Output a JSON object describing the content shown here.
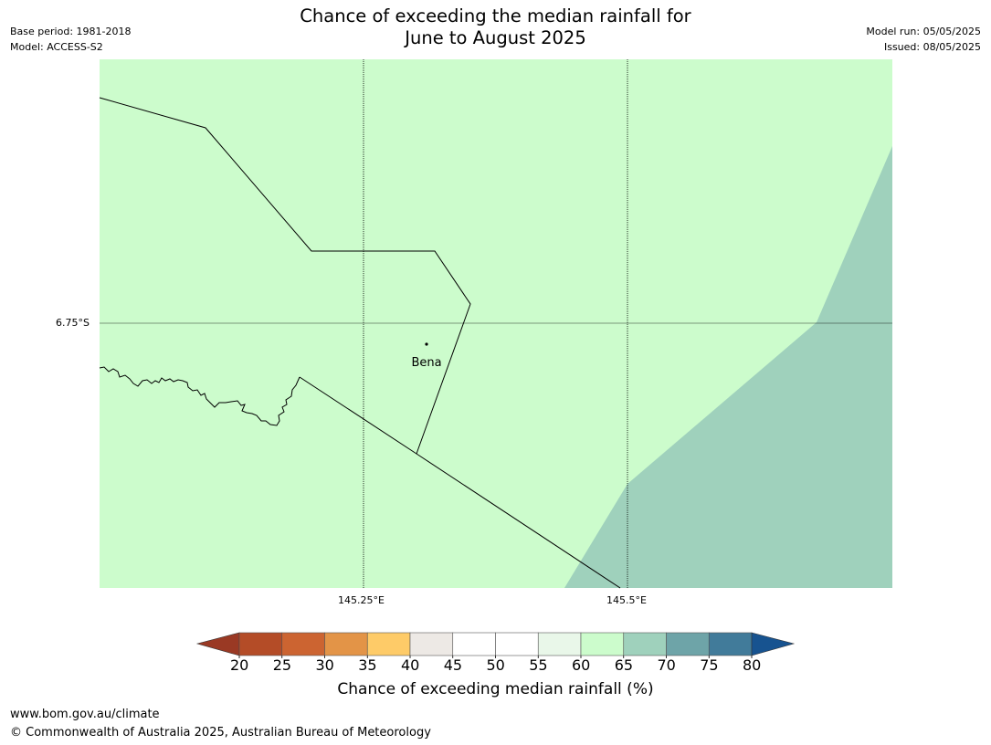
{
  "title_line1": "Chance of exceeding the median rainfall for",
  "title_line2": "June to August 2025",
  "meta_left": [
    "Base period: 1981-2018",
    "Model: ACCESS-S2"
  ],
  "meta_right": [
    "Model run: 05/05/2025",
    "Issued: 08/05/2025"
  ],
  "map": {
    "lat_tick": "6.75°S",
    "lon_ticks": [
      "145.25°E",
      "145.5°E"
    ],
    "town": "Bena",
    "colors": {
      "band_60_65": "#ccfccc",
      "band_65_70": "#9fd1bc",
      "border": "#000000",
      "grid": "#000000"
    }
  },
  "colorbar": {
    "title": "Chance of exceeding median rainfall (%)",
    "ticks": [
      "20",
      "25",
      "30",
      "35",
      "40",
      "45",
      "50",
      "55",
      "60",
      "65",
      "70",
      "75",
      "80"
    ],
    "under_color": "#9a3924",
    "over_color": "#175390",
    "colors": [
      "#b44c27",
      "#cc6431",
      "#e39447",
      "#fecb68",
      "#ede9e5",
      "#ffffff",
      "#ffffff",
      "#e9f7e9",
      "#ccfccc",
      "#9fd1bc",
      "#6ea4a8",
      "#417b9a"
    ]
  },
  "footer": {
    "url": "www.bom.gov.au/climate",
    "copyright": "© Commonwealth of Australia 2025, Australian Bureau of Meteorology"
  }
}
